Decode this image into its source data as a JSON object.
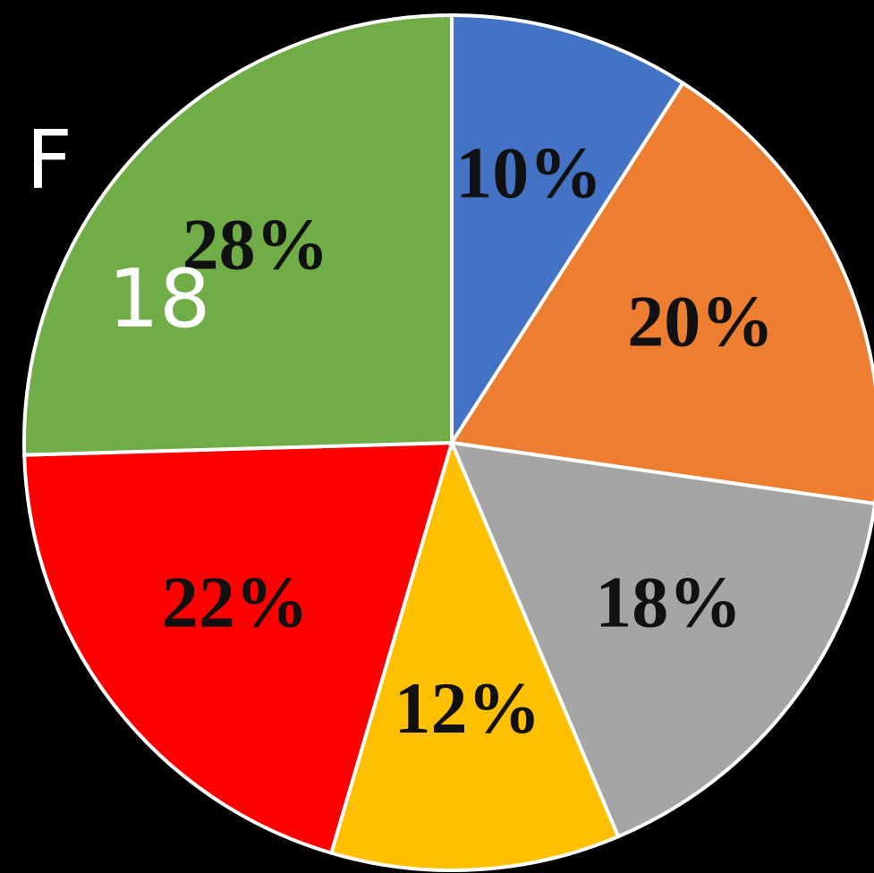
{
  "chart_data": {
    "type": "pie",
    "categories": [
      null,
      null,
      null,
      null,
      null,
      null
    ],
    "values": [
      10,
      20,
      18,
      12,
      22,
      28
    ],
    "value_labels": [
      "10%",
      "20%",
      "18%",
      "12%",
      "22%",
      "28%"
    ],
    "colors": [
      "#4472c4",
      "#ed7d31",
      "#a5a5a5",
      "#ffc000",
      "#ff0000",
      "#70ad47"
    ],
    "annotations": [
      "F",
      "18"
    ]
  }
}
